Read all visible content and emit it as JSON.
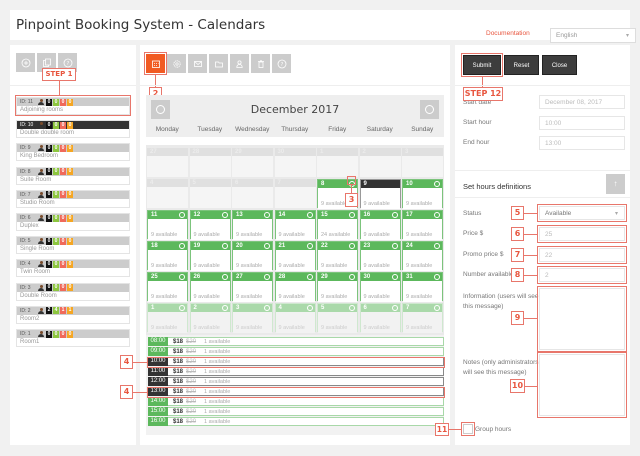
{
  "header": {
    "title": "Pinpoint Booking System - Calendars",
    "documentation_link": "Documentation",
    "language": "English"
  },
  "left_toolbar": {
    "buttons": [
      {
        "icon": "add-icon",
        "label": "Add calendar"
      },
      {
        "icon": "duplicate-icon",
        "label": "Duplicate calendar"
      },
      {
        "icon": "help-icon",
        "label": "Help"
      }
    ]
  },
  "steps": {
    "step1": "STEP 1",
    "step2": "2",
    "step3": "3",
    "step4": "4",
    "step5": "5",
    "step6": "6",
    "step7": "7",
    "step8": "8",
    "step9": "9",
    "step10": "10",
    "step11": "11",
    "step12": "STEP 12"
  },
  "calendars": [
    {
      "id": "ID: 11",
      "name": "Adjoining rooms",
      "counts": [
        "0",
        "0",
        "0",
        "0"
      ],
      "selected": false
    },
    {
      "id": "ID: 10",
      "name": "Double double room",
      "counts": [
        "0",
        "0",
        "0",
        "0"
      ],
      "selected": true
    },
    {
      "id": "ID: 9",
      "name": "King Bedroom",
      "counts": [
        "0",
        "0",
        "0",
        "0"
      ],
      "selected": false
    },
    {
      "id": "ID: 8",
      "name": "Suite Room",
      "counts": [
        "0",
        "0",
        "0",
        "0"
      ],
      "selected": false
    },
    {
      "id": "ID: 7",
      "name": "Studio Room",
      "counts": [
        "0",
        "0",
        "0",
        "0"
      ],
      "selected": false
    },
    {
      "id": "ID: 6",
      "name": "Duplex",
      "counts": [
        "0",
        "0",
        "0",
        "0"
      ],
      "selected": false
    },
    {
      "id": "ID: 5",
      "name": "Single Room",
      "counts": [
        "0",
        "0",
        "0",
        "0"
      ],
      "selected": false
    },
    {
      "id": "ID: 4",
      "name": "Twin Room",
      "counts": [
        "0",
        "0",
        "0",
        "0"
      ],
      "selected": false
    },
    {
      "id": "ID: 3",
      "name": "Double Room",
      "counts": [
        "0",
        "0",
        "0",
        "0"
      ],
      "selected": false
    },
    {
      "id": "ID: 2",
      "name": "Room2",
      "counts": [
        "2",
        "4",
        "1",
        "1"
      ],
      "selected": false
    },
    {
      "id": "ID: 1",
      "name": "Room1",
      "counts": [
        "0",
        "0",
        "0",
        "0"
      ],
      "selected": false
    }
  ],
  "mid_toolbar": {
    "buttons": [
      {
        "icon": "calendar-icon",
        "active": true
      },
      {
        "icon": "gear-icon",
        "active": false
      },
      {
        "icon": "mail-icon",
        "active": false
      },
      {
        "icon": "folder-icon",
        "active": false
      },
      {
        "icon": "users-icon",
        "active": false
      },
      {
        "icon": "trash-icon",
        "active": false
      },
      {
        "icon": "help-icon",
        "active": false
      }
    ]
  },
  "calendar": {
    "month_label": "December 2017",
    "weekdays": [
      "Monday",
      "Tuesday",
      "Wednesday",
      "Thursday",
      "Friday",
      "Saturday",
      "Sunday"
    ],
    "weeks": [
      [
        {
          "d": "27",
          "s": "gray",
          "a": ""
        },
        {
          "d": "28",
          "s": "gray",
          "a": ""
        },
        {
          "d": "29",
          "s": "gray",
          "a": ""
        },
        {
          "d": "30",
          "s": "gray",
          "a": ""
        },
        {
          "d": "1",
          "s": "gray",
          "a": ""
        },
        {
          "d": "2",
          "s": "gray",
          "a": ""
        },
        {
          "d": "3",
          "s": "gray",
          "a": ""
        }
      ],
      [
        {
          "d": "4",
          "s": "gray",
          "a": ""
        },
        {
          "d": "5",
          "s": "gray",
          "a": ""
        },
        {
          "d": "6",
          "s": "gray",
          "a": ""
        },
        {
          "d": "7",
          "s": "gray",
          "a": ""
        },
        {
          "d": "8",
          "s": "green",
          "a": "9 available"
        },
        {
          "d": "9",
          "s": "dark",
          "a": "9 available"
        },
        {
          "d": "10",
          "s": "green",
          "a": "9 available"
        }
      ],
      [
        {
          "d": "11",
          "s": "green",
          "a": "9 available"
        },
        {
          "d": "12",
          "s": "green",
          "a": "9 available"
        },
        {
          "d": "13",
          "s": "green",
          "a": "9 available"
        },
        {
          "d": "14",
          "s": "green",
          "a": "9 available"
        },
        {
          "d": "15",
          "s": "green",
          "a": "24 available"
        },
        {
          "d": "16",
          "s": "green",
          "a": "9 available"
        },
        {
          "d": "17",
          "s": "green",
          "a": "9 available"
        }
      ],
      [
        {
          "d": "18",
          "s": "green",
          "a": "9 available"
        },
        {
          "d": "19",
          "s": "green",
          "a": "9 available"
        },
        {
          "d": "20",
          "s": "green",
          "a": "9 available"
        },
        {
          "d": "21",
          "s": "green",
          "a": "9 available"
        },
        {
          "d": "22",
          "s": "green",
          "a": "9 available"
        },
        {
          "d": "23",
          "s": "green",
          "a": "9 available"
        },
        {
          "d": "24",
          "s": "green",
          "a": "9 available"
        }
      ],
      [
        {
          "d": "25",
          "s": "green",
          "a": "9 available"
        },
        {
          "d": "26",
          "s": "green",
          "a": "9 available"
        },
        {
          "d": "27",
          "s": "green",
          "a": "9 available"
        },
        {
          "d": "28",
          "s": "green",
          "a": "9 available"
        },
        {
          "d": "29",
          "s": "green",
          "a": "9 available"
        },
        {
          "d": "30",
          "s": "green",
          "a": "9 available"
        },
        {
          "d": "31",
          "s": "green",
          "a": "9 available"
        }
      ],
      [
        {
          "d": "1",
          "s": "faded",
          "a": "9 available"
        },
        {
          "d": "2",
          "s": "faded",
          "a": "9 available"
        },
        {
          "d": "3",
          "s": "faded",
          "a": "9 available"
        },
        {
          "d": "4",
          "s": "faded",
          "a": "9 available"
        },
        {
          "d": "5",
          "s": "faded",
          "a": "9 available"
        },
        {
          "d": "6",
          "s": "faded",
          "a": "9 available"
        },
        {
          "d": "7",
          "s": "faded",
          "a": "9 available"
        }
      ]
    ]
  },
  "hours": [
    {
      "time": "08:00",
      "price": "$18",
      "old_price": "$20",
      "available": "1 available",
      "selected": false
    },
    {
      "time": "09:00",
      "price": "$18",
      "old_price": "$20",
      "available": "1 available",
      "selected": false
    },
    {
      "time": "10:00",
      "price": "$18",
      "old_price": "$20",
      "available": "1 available",
      "selected": true
    },
    {
      "time": "11:00",
      "price": "$18",
      "old_price": "$20",
      "available": "1 available",
      "selected": true
    },
    {
      "time": "12:00",
      "price": "$18",
      "old_price": "$20",
      "available": "1 available",
      "selected": true
    },
    {
      "time": "13:00",
      "price": "$18",
      "old_price": "$20",
      "available": "1 available",
      "selected": true
    },
    {
      "time": "14:00",
      "price": "$18",
      "old_price": "$20",
      "available": "1 available",
      "selected": false
    },
    {
      "time": "15:00",
      "price": "$18",
      "old_price": "$20",
      "available": "1 available",
      "selected": false
    },
    {
      "time": "16:00",
      "price": "$18",
      "old_price": "$20",
      "available": "1 available",
      "selected": false
    }
  ],
  "form": {
    "submit": "Submit",
    "reset": "Reset",
    "close": "Close",
    "start_date_label": "Start date",
    "start_date_value": "December 08, 2017",
    "start_hour_label": "Start hour",
    "start_hour_value": "10:00",
    "end_hour_label": "End hour",
    "end_hour_value": "13:00",
    "set_hours_title": "Set hours definitions",
    "status_label": "Status",
    "status_value": "Available",
    "price_label": "Price $",
    "price_value": "25",
    "promo_label": "Promo price $",
    "promo_value": "22",
    "number_label": "Number available",
    "number_value": "2",
    "info_label": "Information (users will see this message)",
    "notes_label": "Notes (only administrators will see this message)",
    "group_hours_label": "Group hours"
  },
  "colors": {
    "accent": "#f15a22",
    "available_green": "#5cb85c",
    "selected_dark": "#333333",
    "annotation_red": "#e8766b"
  }
}
